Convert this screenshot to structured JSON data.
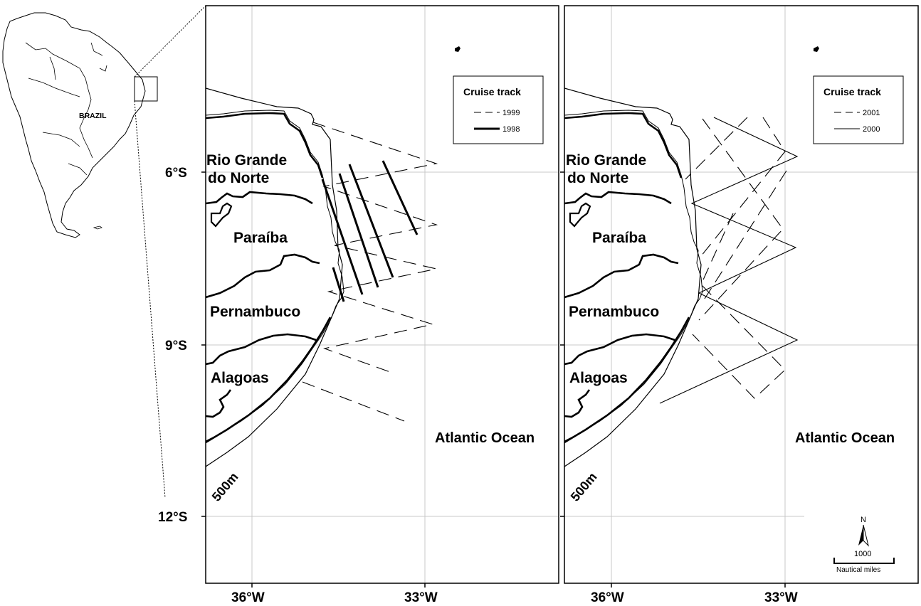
{
  "inset": {
    "country_label": "BRAZIL"
  },
  "axes": {
    "y_ticks": [
      "6°S",
      "9°S",
      "12°S"
    ],
    "x_ticks": [
      "36°W",
      "33°W"
    ]
  },
  "states": [
    "Rio Grande",
    "do Norte",
    "Paraíba",
    "Pernambuco",
    "Alagoas"
  ],
  "isobath_label": "500m",
  "ocean_label": "Atlantic Ocean",
  "panels": [
    {
      "legend": {
        "title": "Cruise track",
        "entries": [
          {
            "label": "1999",
            "style": "dashed"
          },
          {
            "label": "1998",
            "style": "bold"
          }
        ]
      }
    },
    {
      "legend": {
        "title": "Cruise track",
        "entries": [
          {
            "label": "2001",
            "style": "dashed"
          },
          {
            "label": "2000",
            "style": "solid"
          }
        ]
      }
    }
  ],
  "north_arrow": {
    "label": "N"
  },
  "scale_bar": {
    "value": "1000",
    "unit": "Nautical miles"
  },
  "colors": {
    "line": "#000000",
    "grid": "#c8c8c8",
    "background": "#ffffff"
  }
}
